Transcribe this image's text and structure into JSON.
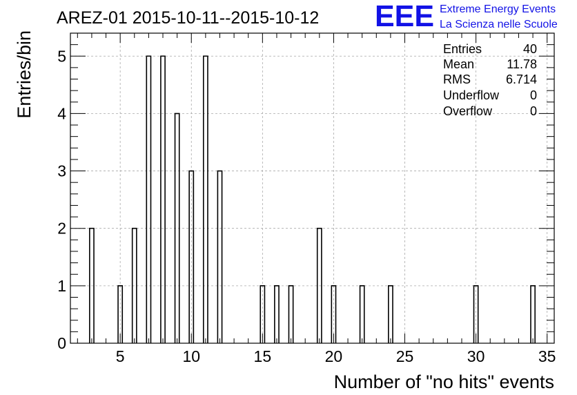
{
  "chart_data": {
    "type": "bar",
    "title": "AREZ-01 2015-10-11--2015-10-12",
    "xlabel": "Number of \"no hits\" events",
    "ylabel": "Entries/bin",
    "xlim": [
      1.5,
      35.5
    ],
    "ylim": [
      0,
      5.4
    ],
    "x_ticks": [
      5,
      10,
      15,
      20,
      25,
      30,
      35
    ],
    "y_ticks": [
      0,
      1,
      2,
      3,
      4,
      5
    ],
    "grid": true,
    "bin_width": 0.3,
    "x": [
      3,
      5,
      6,
      7,
      8,
      9,
      10,
      11,
      12,
      15,
      16,
      17,
      19,
      20,
      22,
      24,
      30,
      34
    ],
    "values": [
      2,
      1,
      2,
      5,
      5,
      4,
      3,
      5,
      3,
      1,
      1,
      1,
      2,
      1,
      1,
      1,
      1,
      1
    ]
  },
  "stats_box": {
    "rows": [
      {
        "label": "Entries",
        "value": "40"
      },
      {
        "label": "Mean",
        "value": "11.78"
      },
      {
        "label": "RMS",
        "value": "6.714"
      },
      {
        "label": "Underflow",
        "value": "0"
      },
      {
        "label": "Overflow",
        "value": "0"
      }
    ]
  },
  "logo": {
    "text": "EEE",
    "line1": "Extreme Energy Events",
    "line2": "La Scienza nelle Scuole",
    "color": "#1212e6"
  }
}
